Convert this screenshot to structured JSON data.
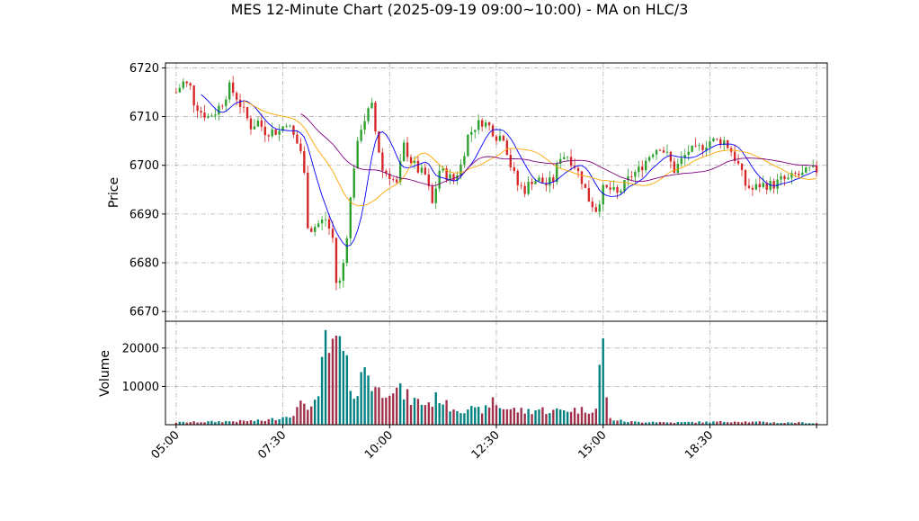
{
  "chart_data": {
    "type": "candlestick",
    "title": "MES 12-Minute Chart (2025-09-19 09:00~10:00) - MA on HLC/3",
    "price_panel": {
      "ylabel": "Price",
      "yticks": [
        6670,
        6680,
        6690,
        6700,
        6710,
        6720
      ],
      "ylim": [
        6668,
        6721
      ],
      "grid": true
    },
    "volume_panel": {
      "ylabel": "Volume",
      "yticks": [
        10000,
        20000
      ],
      "ytick_labels": [
        "10000",
        "20000"
      ],
      "ylim": [
        0,
        27000
      ],
      "grid": true
    },
    "xlim": [
      -3,
      183
    ],
    "xticks": [
      {
        "index": 0,
        "label": "05:00"
      },
      {
        "index": 30,
        "label": "07:30"
      },
      {
        "index": 60,
        "label": "10:00"
      },
      {
        "index": 90,
        "label": "12:30"
      },
      {
        "index": 120,
        "label": "15:00"
      },
      {
        "index": 150,
        "label": "18:30"
      },
      {
        "index": 180,
        "label": ""
      }
    ],
    "colors": {
      "up": "#2ca02c",
      "down": "#d62728",
      "ma_fast": "#0000ff",
      "ma_mid": "#ffa500",
      "ma_slow": "#800080",
      "vol_up": "#008080",
      "vol_down": "#a0304a"
    },
    "price_anchors": [
      [
        0,
        6715
      ],
      [
        2,
        6717
      ],
      [
        4,
        6716
      ],
      [
        5,
        6713
      ],
      [
        7,
        6711
      ],
      [
        9,
        6710
      ],
      [
        11,
        6711
      ],
      [
        13,
        6713
      ],
      [
        15,
        6716
      ],
      [
        17,
        6714
      ],
      [
        19,
        6711
      ],
      [
        21,
        6708
      ],
      [
        23,
        6709
      ],
      [
        25,
        6707
      ],
      [
        27,
        6707
      ],
      [
        29,
        6707
      ],
      [
        31,
        6709
      ],
      [
        33,
        6706
      ],
      [
        35,
        6703
      ],
      [
        36,
        6698
      ],
      [
        37,
        6688
      ],
      [
        38,
        6687
      ],
      [
        40,
        6688
      ],
      [
        42,
        6689
      ],
      [
        44,
        6685
      ],
      [
        45,
        6676
      ],
      [
        46,
        6676
      ],
      [
        47,
        6680
      ],
      [
        48,
        6686
      ],
      [
        49,
        6693
      ],
      [
        50,
        6700
      ],
      [
        52,
        6708
      ],
      [
        54,
        6711
      ],
      [
        55,
        6712
      ],
      [
        56,
        6707
      ],
      [
        57,
        6703
      ],
      [
        58,
        6699
      ],
      [
        60,
        6698
      ],
      [
        62,
        6696
      ],
      [
        64,
        6704
      ],
      [
        66,
        6701
      ],
      [
        68,
        6699
      ],
      [
        70,
        6698
      ],
      [
        72,
        6692
      ],
      [
        74,
        6699
      ],
      [
        76,
        6698
      ],
      [
        78,
        6697
      ],
      [
        80,
        6700
      ],
      [
        82,
        6706
      ],
      [
        84,
        6708
      ],
      [
        86,
        6709
      ],
      [
        88,
        6708
      ],
      [
        90,
        6706
      ],
      [
        92,
        6706
      ],
      [
        94,
        6700
      ],
      [
        96,
        6696
      ],
      [
        98,
        6695
      ],
      [
        100,
        6697
      ],
      [
        102,
        6697
      ],
      [
        104,
        6696
      ],
      [
        106,
        6697
      ],
      [
        108,
        6702
      ],
      [
        110,
        6702
      ],
      [
        112,
        6700
      ],
      [
        114,
        6697
      ],
      [
        116,
        6693
      ],
      [
        118,
        6691
      ],
      [
        120,
        6695
      ],
      [
        122,
        6695
      ],
      [
        124,
        6694
      ],
      [
        126,
        6696
      ],
      [
        128,
        6698
      ],
      [
        130,
        6699
      ],
      [
        132,
        6701
      ],
      [
        134,
        6703
      ],
      [
        136,
        6704
      ],
      [
        138,
        6702
      ],
      [
        140,
        6699
      ],
      [
        142,
        6701
      ],
      [
        144,
        6703
      ],
      [
        146,
        6703
      ],
      [
        148,
        6704
      ],
      [
        150,
        6705
      ],
      [
        152,
        6705
      ],
      [
        154,
        6705
      ],
      [
        156,
        6703
      ],
      [
        158,
        6700
      ],
      [
        160,
        6696
      ],
      [
        162,
        6695
      ],
      [
        164,
        6696
      ],
      [
        166,
        6696
      ],
      [
        168,
        6696
      ],
      [
        170,
        6697
      ],
      [
        172,
        6697
      ],
      [
        174,
        6698
      ],
      [
        176,
        6698
      ],
      [
        178,
        6699
      ],
      [
        180,
        6699
      ]
    ],
    "volume_anchors": [
      [
        0,
        600
      ],
      [
        10,
        800
      ],
      [
        20,
        1000
      ],
      [
        25,
        1100
      ],
      [
        30,
        2000
      ],
      [
        33,
        3000
      ],
      [
        36,
        6000
      ],
      [
        38,
        4500
      ],
      [
        40,
        6000
      ],
      [
        42,
        26000
      ],
      [
        43,
        15000
      ],
      [
        45,
        22500
      ],
      [
        47,
        17000
      ],
      [
        49,
        11000
      ],
      [
        51,
        8000
      ],
      [
        53,
        16000
      ],
      [
        55,
        11000
      ],
      [
        57,
        8500
      ],
      [
        60,
        10500
      ],
      [
        62,
        9000
      ],
      [
        64,
        8000
      ],
      [
        66,
        6500
      ],
      [
        68,
        6000
      ],
      [
        70,
        5500
      ],
      [
        72,
        6000
      ],
      [
        74,
        7500
      ],
      [
        76,
        5000
      ],
      [
        78,
        4500
      ],
      [
        80,
        4000
      ],
      [
        82,
        4500
      ],
      [
        84,
        3500
      ],
      [
        86,
        4000
      ],
      [
        88,
        4000
      ],
      [
        89,
        8000
      ],
      [
        90,
        5000
      ],
      [
        94,
        4000
      ],
      [
        98,
        3500
      ],
      [
        102,
        4000
      ],
      [
        106,
        3500
      ],
      [
        110,
        4000
      ],
      [
        114,
        3800
      ],
      [
        118,
        4200
      ],
      [
        119,
        14000
      ],
      [
        120,
        20500
      ],
      [
        121,
        8000
      ],
      [
        122,
        1500
      ],
      [
        126,
        900
      ],
      [
        130,
        700
      ],
      [
        134,
        800
      ],
      [
        138,
        600
      ],
      [
        142,
        600
      ],
      [
        146,
        700
      ],
      [
        150,
        700
      ],
      [
        154,
        800
      ],
      [
        158,
        900
      ],
      [
        162,
        700
      ],
      [
        166,
        700
      ],
      [
        170,
        500
      ],
      [
        174,
        600
      ],
      [
        180,
        400
      ]
    ],
    "candle_count": 181
  }
}
